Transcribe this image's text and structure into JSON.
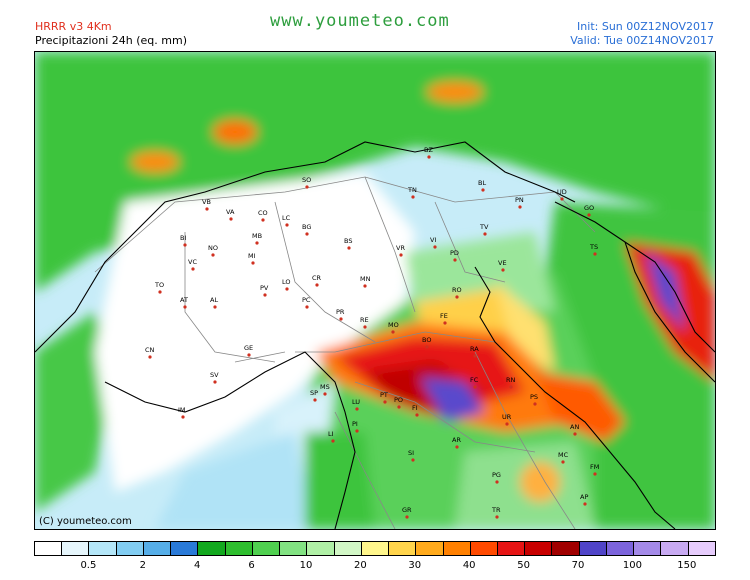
{
  "header": {
    "model": "HRRR v3 4Km",
    "product": "Precipitazioni 24h (eq. mm)",
    "site": "www.youmeteo.com",
    "init": "Init: Sun 00Z12NOV2017",
    "valid": "Valid: Tue 00Z14NOV2017"
  },
  "map": {
    "copyright": "(C) youmeteo.com",
    "cities": [
      "BZ",
      "SO",
      "TN",
      "BL",
      "UD",
      "PN",
      "GO",
      "TS",
      "VB",
      "VA",
      "CO",
      "LC",
      "BG",
      "BS",
      "BI",
      "NO",
      "MB",
      "MI",
      "VR",
      "VI",
      "PD",
      "TV",
      "VE",
      "VC",
      "TO",
      "AT",
      "AL",
      "LO",
      "PV",
      "CR",
      "PC",
      "MN",
      "RO",
      "FE",
      "PR",
      "RE",
      "MO",
      "BO",
      "RA",
      "CN",
      "GE",
      "SV",
      "IM",
      "SP",
      "MS",
      "LU",
      "PT",
      "PO",
      "FI",
      "FC",
      "RN",
      "PS",
      "AR",
      "UR",
      "AN",
      "SI",
      "MC",
      "PG",
      "FM",
      "LI",
      "PI",
      "GR",
      "AP",
      "TR"
    ]
  },
  "legend": {
    "colors": [
      "#ffffff",
      "#e6f6fc",
      "#b4e6f8",
      "#82cdf2",
      "#56aee8",
      "#2a7ad8",
      "#12a81e",
      "#2ebe2e",
      "#50d050",
      "#82e282",
      "#b0f0a6",
      "#d2f7c6",
      "#fff68c",
      "#ffd44c",
      "#ffaa1c",
      "#ff8000",
      "#ff4a00",
      "#e61414",
      "#c80000",
      "#a00000",
      "#5044c8",
      "#7c64dc",
      "#a48ae8",
      "#c8aaf2",
      "#e6ccfc"
    ],
    "ticks": [
      "0.5",
      "2",
      "4",
      "6",
      "10",
      "20",
      "30",
      "40",
      "50",
      "70",
      "100",
      "150"
    ]
  }
}
